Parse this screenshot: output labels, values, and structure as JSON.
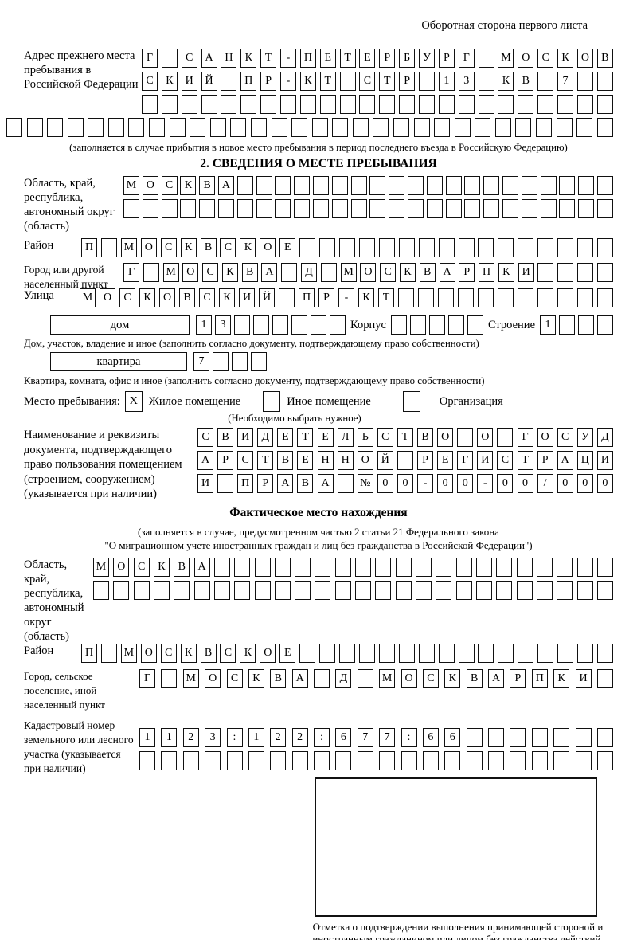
{
  "page_note": "Оборотная сторона первого листа",
  "prev_address": {
    "label": "Адрес прежнего места пребывания в Российской Федерации",
    "rows": [
      "Г САНКТ-ПЕТЕРБУРГ МОСКОВ",
      "СКИЙ ПР-КТ СТР 13 КВ 7  ",
      "                        ",
      "                              "
    ],
    "caption": "(заполняется в случае прибытия в новое место пребывания в период последнего въезда в Российскую Федерацию)"
  },
  "section2": {
    "title": "2. СВЕДЕНИЯ О МЕСТЕ ПРЕБЫВАНИЯ",
    "oblast": {
      "label": "Область, край, республика, автономный округ (область)",
      "rows": [
        "МОСКВА                    ",
        "                          "
      ]
    },
    "raion": {
      "label": "Район",
      "row": "П МОСКВСКОЕ                "
    },
    "gorod": {
      "label": "Город или другой населенный пункт",
      "row": "Г МОСКВА Д МОСКВАРПКИ    "
    },
    "ulitsa": {
      "label": "Улица",
      "row": "МОСКОВСКИЙ ПР-КТ           "
    },
    "dom": {
      "box_label": "дом",
      "cells": "13      ",
      "korpus_label": "Корпус",
      "korpus_cells": "     ",
      "stroenie_label": "Строение",
      "stroenie_cells": "1   "
    },
    "dom_caption": "Дом, участок, владение и иное (заполнить согласно документу, подтверждающему право собственности)",
    "kvartira": {
      "box_label": "квартира",
      "cells": "7   "
    },
    "kvartira_caption": "Квартира, комната, офис и иное (заполнить согласно документу, подтверждающему право собственности)",
    "mesto": {
      "label": "Место пребывания:",
      "options": [
        {
          "label": "Жилое помещение",
          "mark": "X"
        },
        {
          "label": "Иное помещение",
          "mark": ""
        },
        {
          "label": "Организация",
          "mark": ""
        }
      ],
      "note": "(Необходимо выбрать нужное)"
    },
    "doc": {
      "label": "Наименование и реквизиты документа, подтверждающего право пользования помещением (строением, сооружением) (указывается при наличии)",
      "rows": [
        "СВИДЕТЕЛЬСТВО О ГОСУД",
        "АРСТВЕННОЙ РЕГИСТРАЦИ",
        "И ПРАВА №00-00-00/000"
      ]
    }
  },
  "fact": {
    "title": "Фактическое место нахождения",
    "caption_line1": "(заполняется в случае, предусмотренном частью 2 статьи 21 Федерального закона",
    "caption_line2": "\"О миграционном учете иностранных граждан и лиц без гражданства в Российской Федерации\")",
    "oblast": {
      "label": "Область, край, республика, автономный округ (область)",
      "rows": [
        "МОСКВА                    ",
        "                          "
      ]
    },
    "raion": {
      "label": "Район",
      "row": "П МОСКВСКОЕ                "
    },
    "gorod": {
      "label": "Город, сельское поселение, иной населенный пункт",
      "row": "Г МОСКВА Д МОСКВАРПКИ "
    },
    "kadastr": {
      "label": "Кадастровый номер земельного или лесного участка (указывается при наличии)",
      "rows": [
        "1123:122:677:66       ",
        "                      "
      ]
    }
  },
  "stamp": {
    "caption": "Отметка о подтверждении выполнения принимающей стороной и иностранным гражданином или лицом без гражданства действий, необходимых для его постановки на учет по месту пребывания"
  }
}
